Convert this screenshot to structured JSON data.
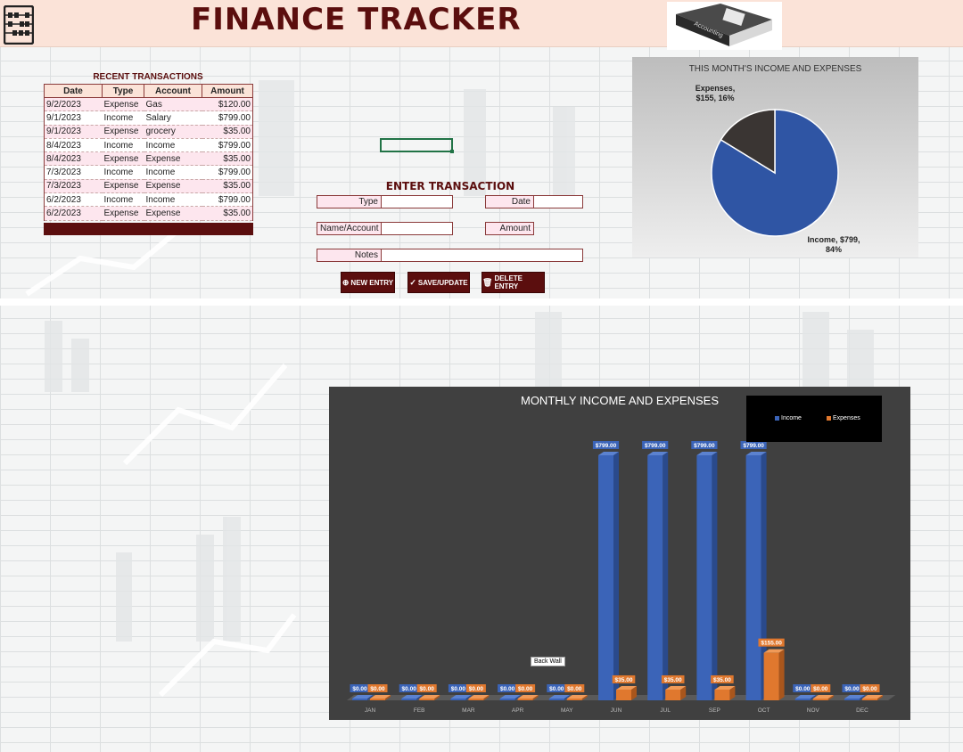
{
  "header": {
    "title": "FINANCE TRACKER",
    "book_text": "Accounting",
    "colors": {
      "header_bg": "#fbe3d8",
      "brand": "#5b0e0e"
    }
  },
  "recent_transactions": {
    "title": "RECENT TRANSACTIONS",
    "columns": [
      "Date",
      "Type",
      "Account",
      "Amount"
    ],
    "rows": [
      {
        "date": "9/2/2023",
        "type": "Expense",
        "account": "Gas",
        "amount": "$120.00"
      },
      {
        "date": "9/1/2023",
        "type": "Income",
        "account": "Salary",
        "amount": "$799.00"
      },
      {
        "date": "9/1/2023",
        "type": "Expense",
        "account": "grocery",
        "amount": "$35.00"
      },
      {
        "date": "8/4/2023",
        "type": "Income",
        "account": "Income",
        "amount": "$799.00"
      },
      {
        "date": "8/4/2023",
        "type": "Expense",
        "account": "Expense",
        "amount": "$35.00"
      },
      {
        "date": "7/3/2023",
        "type": "Income",
        "account": "Income",
        "amount": "$799.00"
      },
      {
        "date": "7/3/2023",
        "type": "Expense",
        "account": "Expense",
        "amount": "$35.00"
      },
      {
        "date": "6/2/2023",
        "type": "Income",
        "account": "Income",
        "amount": "$799.00"
      },
      {
        "date": "6/2/2023",
        "type": "Expense",
        "account": "Expense",
        "amount": "$35.00"
      }
    ]
  },
  "entry_form": {
    "title": "ENTER TRANSACTION",
    "type_label": "Type",
    "date_label": "Date",
    "name_label": "Name/Account",
    "amount_label": "Amount",
    "notes_label": "Notes",
    "type_value": "",
    "date_value": "",
    "name_value": "",
    "amount_value": "",
    "notes_value": ""
  },
  "buttons": {
    "new_entry": "NEW ENTRY",
    "save_update": "SAVE/UPDATE",
    "delete_entry": "DELETE ENTRY"
  },
  "pie_chart": {
    "title": "THIS MONTH'S INCOME AND EXPENSES",
    "expenses_label_line1": "Expenses,",
    "expenses_label_line2": "$155, 16%",
    "income_label_line1": "Income, $799,",
    "income_label_line2": "84%"
  },
  "bar_chart": {
    "back_wall_tooltip": "Back Wall"
  },
  "chart_data": [
    {
      "type": "pie",
      "title": "THIS MONTH'S INCOME AND EXPENSES",
      "labels": [
        "Income",
        "Expenses"
      ],
      "values": [
        799,
        155
      ],
      "percents": [
        84,
        16
      ],
      "colors": [
        "#2f55a4",
        "#3a3533"
      ]
    },
    {
      "type": "bar",
      "title": "MONTHLY INCOME AND EXPENSES",
      "categories": [
        "JAN",
        "FEB",
        "MAR",
        "APR",
        "MAY",
        "JUN",
        "JUL",
        "SEP",
        "OCT",
        "NOV",
        "DEC"
      ],
      "series": [
        {
          "name": "Income",
          "color": "#3b64b8",
          "values": [
            0,
            0,
            0,
            0,
            0,
            799,
            799,
            799,
            799,
            0,
            0
          ],
          "labels": [
            "$0.00",
            "$0.00",
            "$0.00",
            "$0.00",
            "$0.00",
            "$799.00",
            "$799.00",
            "$799.00",
            "$799.00",
            "$0.00",
            "$0.00"
          ]
        },
        {
          "name": "Expenses",
          "color": "#e0782e",
          "values": [
            0,
            0,
            0,
            0,
            0,
            35,
            35,
            35,
            155,
            0,
            0
          ],
          "labels": [
            "$0.00",
            "$0.00",
            "$0.00",
            "$0.00",
            "$0.00",
            "$35.00",
            "$35.00",
            "$35.00",
            "$155.00",
            "$0.00",
            "$0.00"
          ]
        }
      ],
      "ylim": [
        0,
        799
      ],
      "legend": "top-right",
      "grid": false
    }
  ]
}
